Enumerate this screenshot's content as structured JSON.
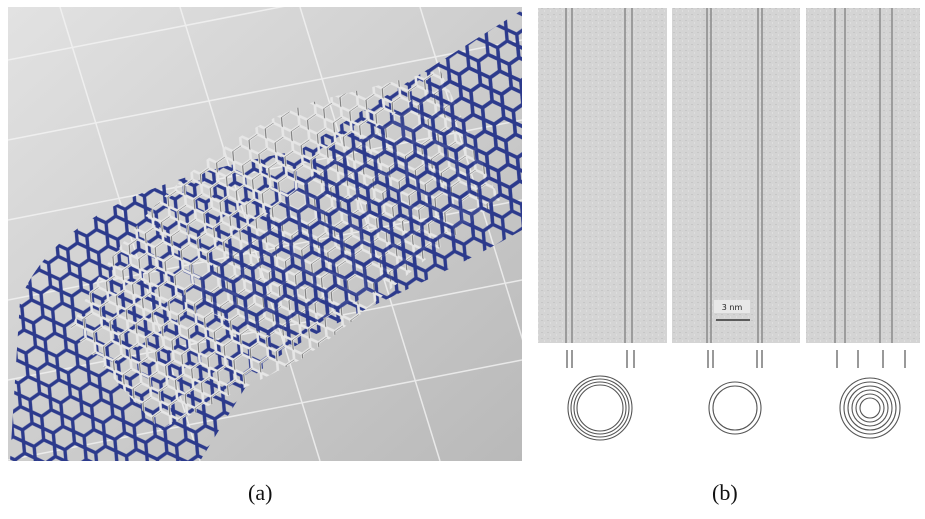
{
  "panels": [
    {
      "label": "(a)"
    },
    {
      "label": "(b)",
      "scale_bar": "3 nm"
    }
  ]
}
